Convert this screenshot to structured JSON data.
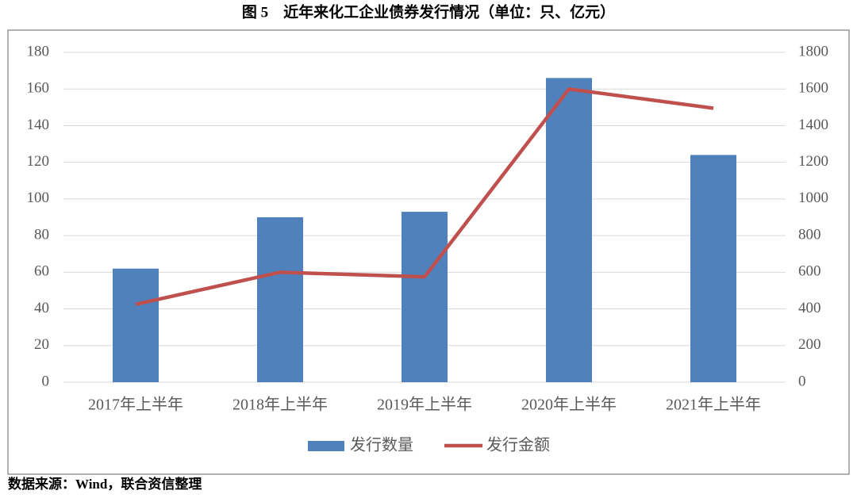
{
  "chart_data": {
    "type": "bar",
    "title": "图 5　近年来化工企业债券发行情况（单位：只、亿元）",
    "source": "数据来源：Wind，联合资信整理",
    "categories": [
      "2017年上半年",
      "2018年上半年",
      "2019年上半年",
      "2020年上半年",
      "2021年上半年"
    ],
    "series": [
      {
        "name": "发行数量",
        "color": "#4f81bd",
        "type": "bar",
        "values": [
          62,
          90,
          93,
          166,
          124
        ]
      },
      {
        "name": "发行金额",
        "color": "#c0504d",
        "type": "line",
        "axis": "y2",
        "values": [
          425,
          600,
          575,
          1600,
          1495
        ]
      }
    ],
    "ylim": [
      0,
      180
    ],
    "yticks": [
      0,
      20,
      40,
      60,
      80,
      100,
      120,
      140,
      160,
      180
    ],
    "y2lim": [
      0,
      1800
    ],
    "y2ticks": [
      0,
      200,
      400,
      600,
      800,
      1000,
      1200,
      1400,
      1600,
      1800
    ],
    "grid": true,
    "legend": "bottom"
  }
}
